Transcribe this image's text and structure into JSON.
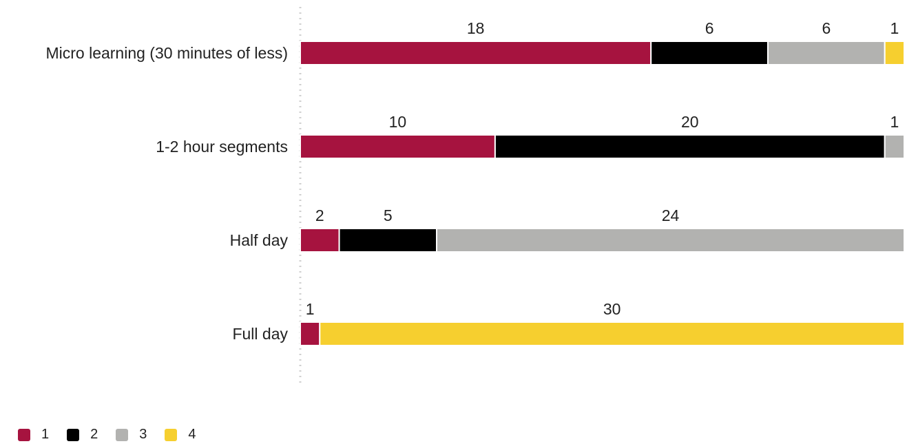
{
  "chart_data": {
    "type": "bar",
    "orientation": "horizontal",
    "stacked": true,
    "normalized": true,
    "categories": [
      "Micro learning (30 minutes of less)",
      "1-2 hour segments",
      "Half day",
      "Full day"
    ],
    "series": [
      {
        "name": "1",
        "color": "#A6133F",
        "values": [
          18,
          10,
          2,
          1
        ]
      },
      {
        "name": "2",
        "color": "#000000",
        "values": [
          6,
          20,
          5,
          0
        ]
      },
      {
        "name": "3",
        "color": "#B2B2B0",
        "values": [
          6,
          1,
          24,
          0
        ]
      },
      {
        "name": "4",
        "color": "#F6CF2F",
        "values": [
          1,
          0,
          0,
          30
        ]
      }
    ],
    "title": "",
    "xlabel": "",
    "ylabel": "",
    "legend": "bottom-left",
    "grid": false
  }
}
